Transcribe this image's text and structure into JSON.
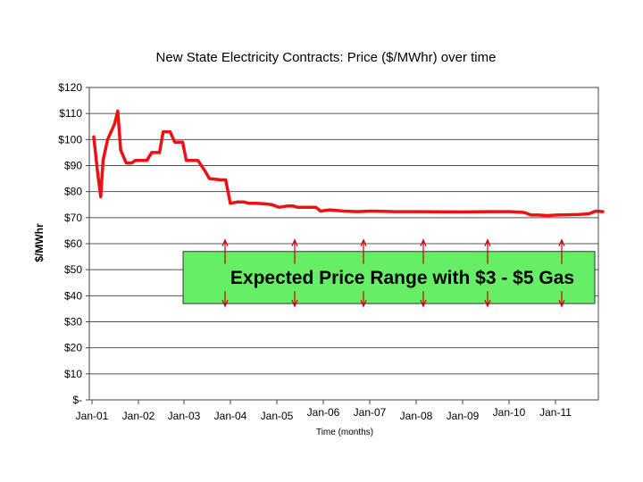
{
  "chart_data": {
    "type": "line",
    "title": "New State Electricity Contracts: Price ($/MWhr) over time",
    "xlabel": "Time (months)",
    "ylabel": "$/MWhr",
    "ylim": [
      0,
      120
    ],
    "ytick_labels": [
      "$-",
      "$10",
      "$20",
      "$30",
      "$40",
      "$50",
      "$60",
      "$70",
      "$80",
      "$90",
      "$100",
      "$110",
      "$120"
    ],
    "xtick_labels": [
      "Jan-01",
      "Jan-02",
      "Jan-03",
      "Jan-04",
      "Jan-05",
      "Jan-06",
      "Jan-07",
      "Jan-08",
      "Jan-09",
      "Jan-10",
      "Jan-11"
    ],
    "grid": "horizontal",
    "colors": {
      "line": "#ee1111",
      "band": "#66ee66",
      "arrows": "#cc0000"
    },
    "series": [
      {
        "values": [
          [
            2001.0,
            101
          ],
          [
            2001.08,
            88
          ],
          [
            2001.15,
            78
          ],
          [
            2001.2,
            92
          ],
          [
            2001.3,
            100
          ],
          [
            2001.45,
            106
          ],
          [
            2001.52,
            111
          ],
          [
            2001.58,
            96
          ],
          [
            2001.7,
            91
          ],
          [
            2001.82,
            91
          ],
          [
            2001.9,
            92
          ],
          [
            2002.05,
            92
          ],
          [
            2002.15,
            92
          ],
          [
            2002.25,
            95
          ],
          [
            2002.42,
            95
          ],
          [
            2002.5,
            103
          ],
          [
            2002.65,
            103
          ],
          [
            2002.75,
            99
          ],
          [
            2002.92,
            99
          ],
          [
            2003.0,
            92
          ],
          [
            2003.25,
            92
          ],
          [
            2003.4,
            88
          ],
          [
            2003.5,
            85
          ],
          [
            2003.75,
            84.5
          ],
          [
            2003.85,
            84.5
          ],
          [
            2003.95,
            75.5
          ],
          [
            2004.1,
            76
          ],
          [
            2004.25,
            76
          ],
          [
            2004.35,
            75.5
          ],
          [
            2004.5,
            75.5
          ],
          [
            2004.7,
            75.3
          ],
          [
            2004.85,
            75
          ],
          [
            2005.0,
            74
          ],
          [
            2005.2,
            74.5
          ],
          [
            2005.3,
            74.5
          ],
          [
            2005.4,
            74
          ],
          [
            2005.8,
            74
          ],
          [
            2005.9,
            72.5
          ],
          [
            2006.1,
            73
          ],
          [
            2006.4,
            72.5
          ],
          [
            2006.7,
            72.3
          ],
          [
            2007.0,
            72.5
          ],
          [
            2007.5,
            72.3
          ],
          [
            2008.0,
            72.3
          ],
          [
            2009.0,
            72.2
          ],
          [
            2009.6,
            72.3
          ],
          [
            2010.0,
            72.3
          ],
          [
            2010.3,
            72
          ],
          [
            2010.45,
            71
          ],
          [
            2010.6,
            71
          ],
          [
            2010.8,
            70.8
          ],
          [
            2011.0,
            71
          ],
          [
            2011.5,
            71.2
          ],
          [
            2011.7,
            71.5
          ],
          [
            2011.85,
            72.5
          ],
          [
            2012.0,
            72.3
          ]
        ]
      }
    ],
    "annotations": [
      {
        "text": "Expected Price Range with $3 - $5 Gas",
        "y_range": [
          37,
          57
        ],
        "x_range": [
          2003.0,
          2012.0
        ]
      }
    ]
  }
}
